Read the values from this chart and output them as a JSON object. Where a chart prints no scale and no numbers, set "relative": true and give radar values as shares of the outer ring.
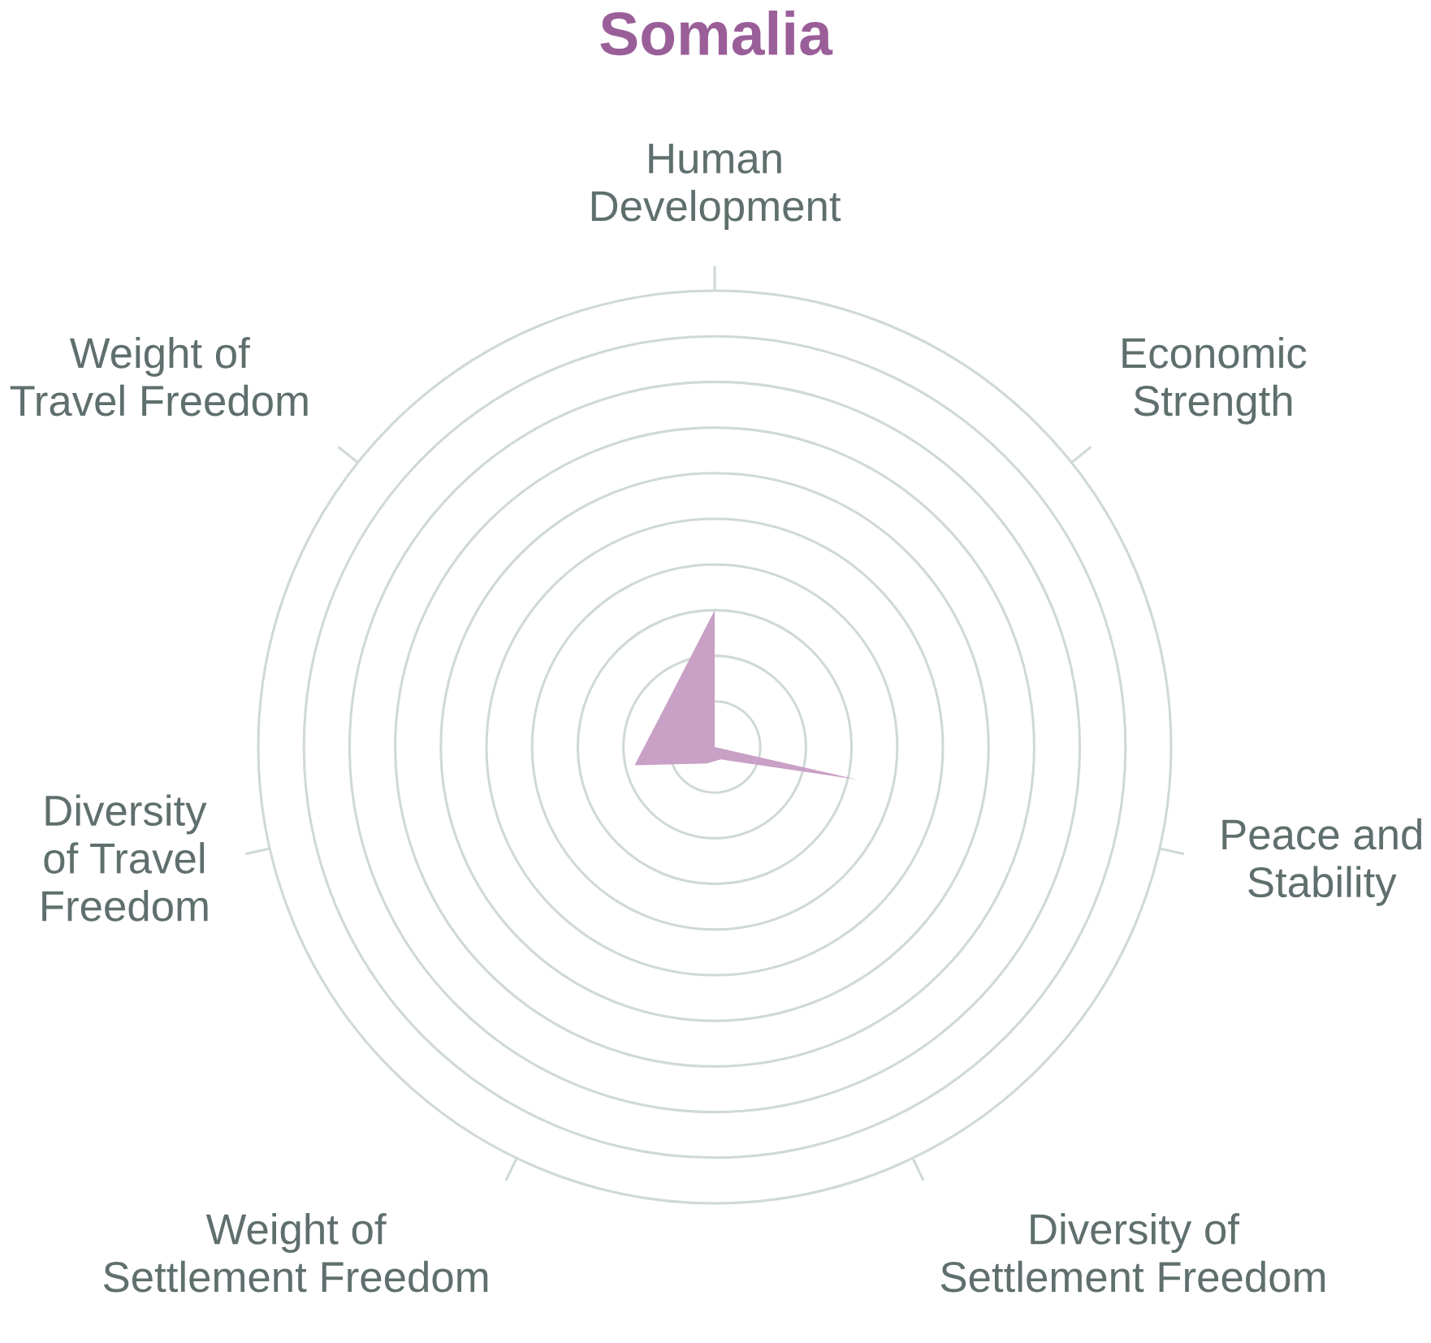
{
  "chart_data": {
    "type": "radar",
    "title": "Somalia",
    "relative": true,
    "grid": true,
    "categories": [
      "Human\nDevelopment",
      "Economic\nStrength",
      "Peace and\nStability",
      "Diversity of\nSettlement Freedom",
      "Weight of\nSettlement Freedom",
      "Diversity\nof Travel\nFreedom",
      "Weight of\nTravel Freedom"
    ],
    "series": [
      {
        "color": "#c9a0c6",
        "values": [
          0.3,
          0.0,
          0.32,
          0.03,
          0.04,
          0.18,
          0.14
        ]
      }
    ]
  }
}
